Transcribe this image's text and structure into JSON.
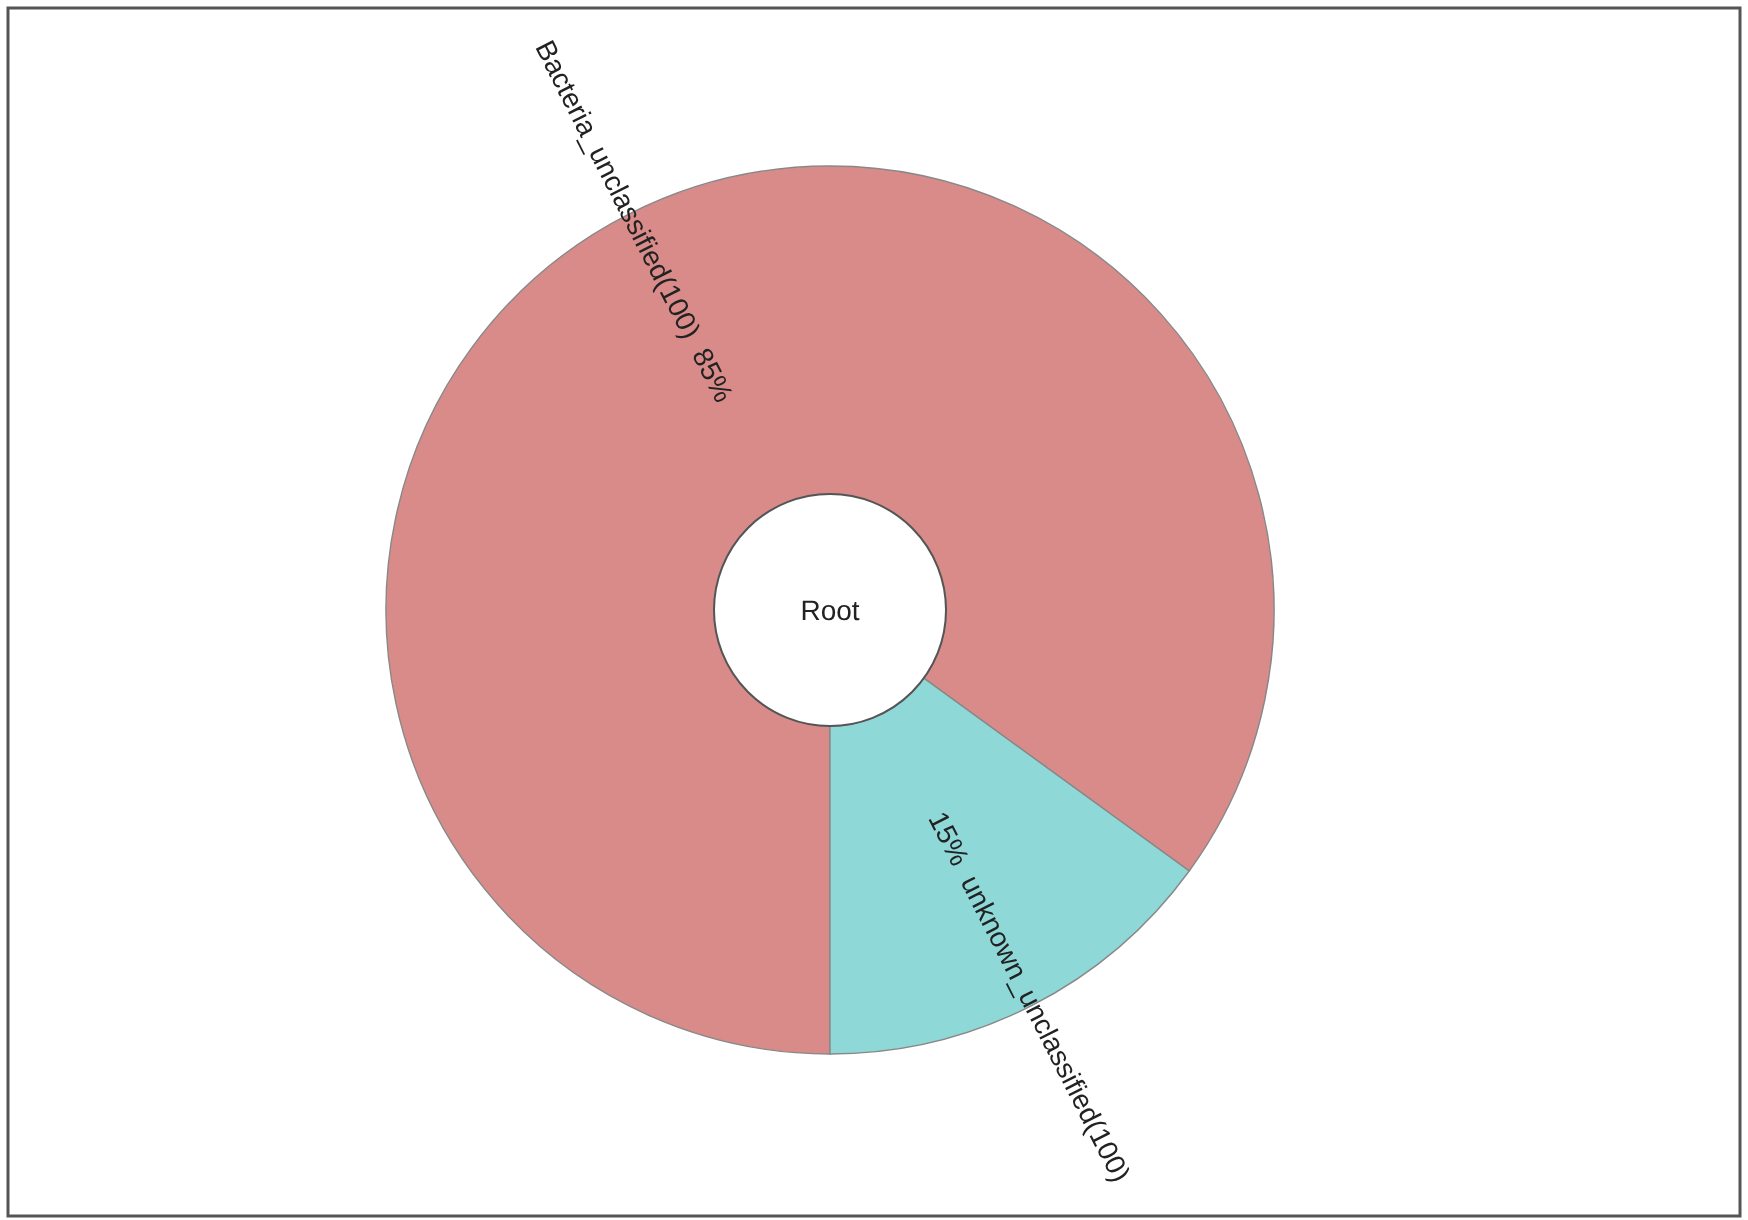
{
  "chart_data": {
    "type": "donut",
    "categories": [
      "Bacteria_unclassified(100)",
      "unknown_unclassified(100)"
    ],
    "values": [
      85,
      15
    ],
    "value_labels": [
      "85%",
      "15%"
    ],
    "colors": [
      "#d98b8a",
      "#8fd8d8"
    ],
    "annotations": [
      "Root"
    ]
  }
}
